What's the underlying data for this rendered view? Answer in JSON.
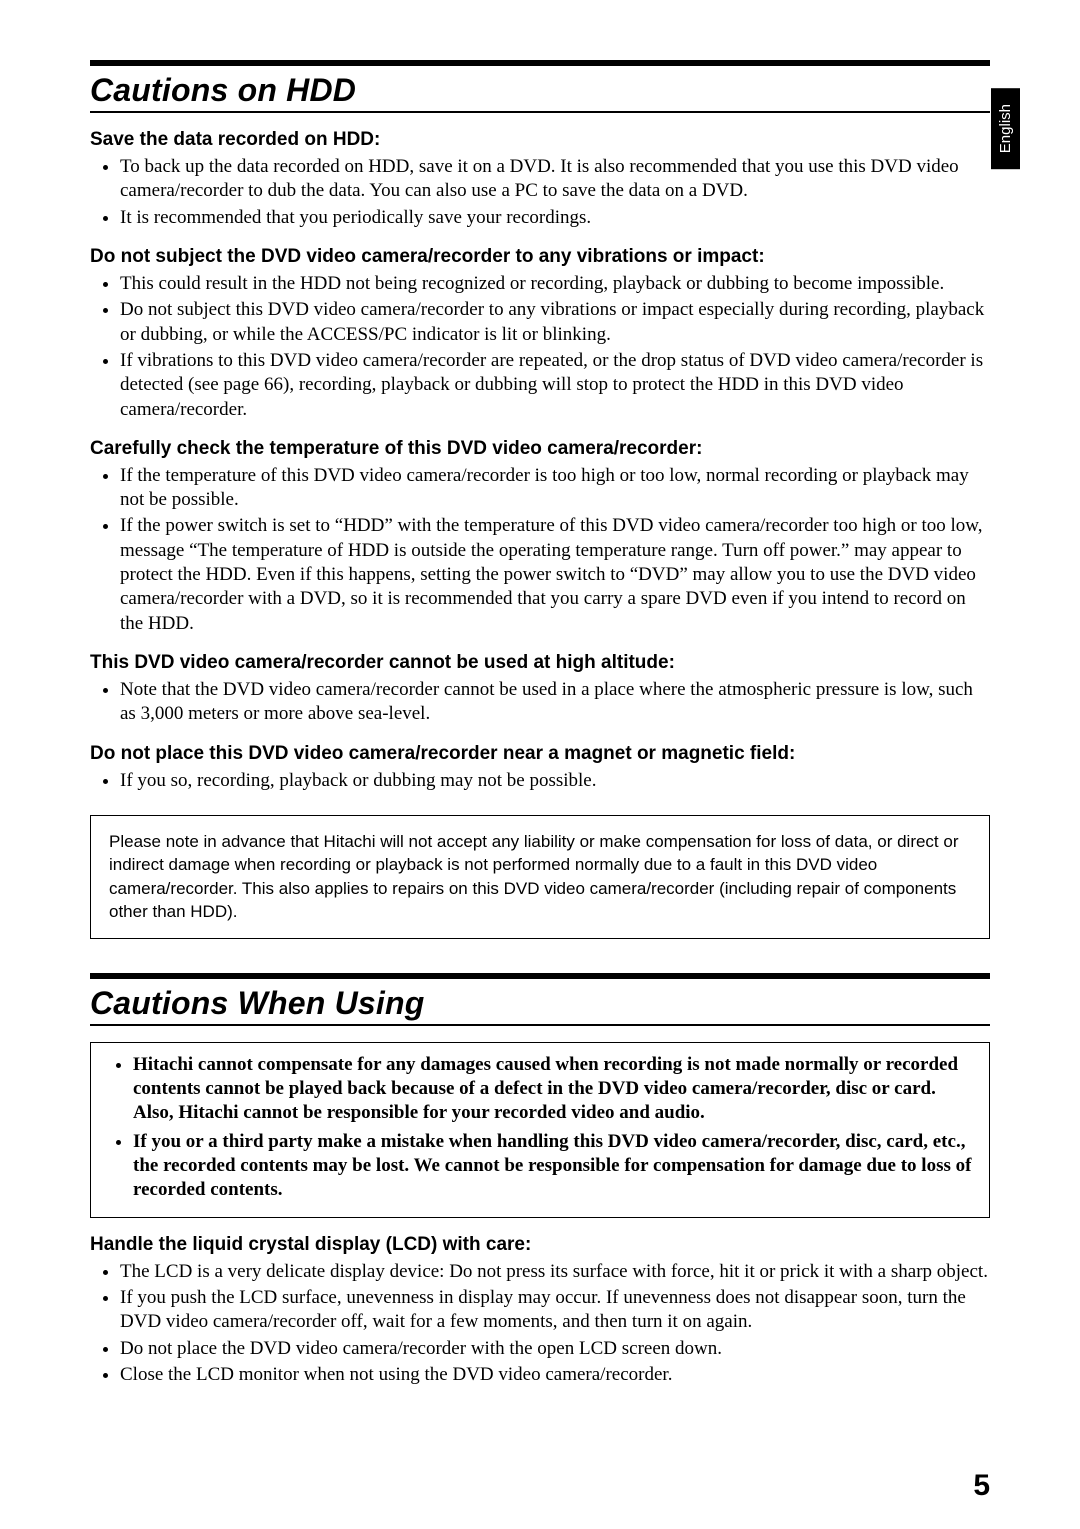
{
  "language_tab": "English",
  "page_number": "5",
  "section1": {
    "title": "Cautions on HDD",
    "sub1": {
      "heading": "Save the data recorded on HDD:",
      "b1": "To back up the data recorded on HDD, save it on a DVD. It is also recommended that you use this DVD video camera/recorder to dub the data. You can also use a PC to save the data on a DVD.",
      "b2": "It is recommended that you periodically save your recordings."
    },
    "sub2": {
      "heading": "Do not subject the DVD video camera/recorder to any vibrations or impact:",
      "b1": "This could result in the HDD not being recognized or recording, playback or dubbing to become impossible.",
      "b2": "Do not subject this DVD video camera/recorder to any vibrations or impact especially during recording, playback or dubbing, or while the ACCESS/PC indicator is lit or blinking.",
      "b3": "If vibrations to this DVD video camera/recorder are repeated, or the drop status of DVD video camera/recorder is detected (see page 66), recording, playback or dubbing will stop to protect the HDD in this DVD video camera/recorder."
    },
    "sub3": {
      "heading": "Carefully check the temperature of this DVD video camera/recorder:",
      "b1": "If the temperature of this DVD video camera/recorder is too high or too low, normal recording or playback may not be possible.",
      "b2": "If the power switch is set to “HDD” with the temperature of this DVD video camera/recorder too high or too low, message “The temperature of HDD is outside the operating temperature range. Turn off power.” may appear to protect the HDD. Even if this happens, setting the power switch to “DVD” may allow you to use the DVD video camera/recorder with a DVD, so it is recommended that you carry a spare DVD even if you intend to record on the HDD."
    },
    "sub4": {
      "heading": "This DVD video camera/recorder cannot be used at high altitude:",
      "b1": "Note that the DVD video camera/recorder cannot be used in a place where the atmospheric pressure is low, such as 3,000 meters or more above sea-level."
    },
    "sub5": {
      "heading": "Do not place this DVD video camera/recorder near a magnet or magnetic field:",
      "b1": "If you so, recording, playback or dubbing may not be possible."
    },
    "notice": "Please note in advance that Hitachi will not accept any liability or make compensation for loss of data, or direct or indirect damage when recording or playback is not performed normally due to a fault in this DVD video camera/recorder. This also applies to repairs on this DVD video camera/recorder (including repair of components other than HDD)."
  },
  "section2": {
    "title": "Cautions When Using",
    "warn": {
      "b1": "Hitachi cannot compensate for any damages caused when recording is not made normally or recorded contents cannot be played back because of a defect in the DVD video camera/recorder, disc or card. Also, Hitachi cannot be responsible for your recorded video and audio.",
      "b2": "If you or a third party make a mistake when handling this DVD video camera/recorder, disc, card, etc., the recorded contents may be lost. We cannot be responsible for compensation for damage due to loss of recorded contents."
    },
    "sub1": {
      "heading": "Handle the liquid crystal display (LCD) with care:",
      "b1": "The LCD is a very delicate display device: Do not press its surface with force, hit it or prick it with a sharp object.",
      "b2": "If you push the LCD surface, unevenness in display may occur. If unevenness does not disappear soon, turn the DVD video camera/recorder off, wait for a few moments, and then turn it on again.",
      "b3": "Do not place the DVD video camera/recorder with the open LCD screen down.",
      "b4": "Close the LCD monitor when not using the DVD video camera/recorder."
    }
  }
}
